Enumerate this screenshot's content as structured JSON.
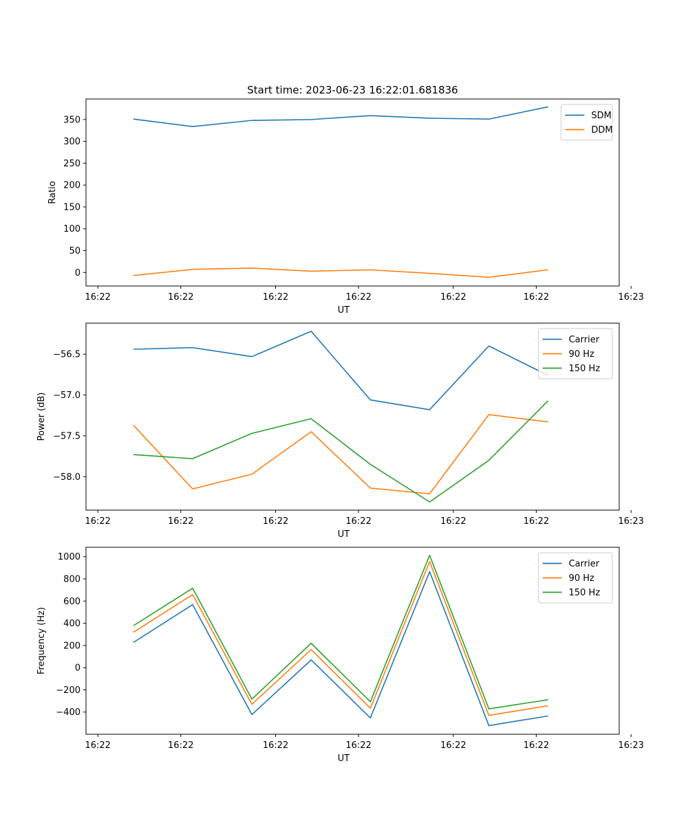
{
  "figure": {
    "title": "Start time: 2023-06-23 16:22:01.681836"
  },
  "chart_data": [
    {
      "type": "line",
      "title": "Start time: 2023-06-23 16:22:01.681836",
      "xlabel": "UT",
      "ylabel": "Ratio",
      "x": [
        "16:22:02.6",
        "16:22:03.1",
        "16:22:03.6",
        "16:22:04.1",
        "16:22:04.6",
        "16:22:05.1",
        "16:22:05.6",
        "16:22:06.1"
      ],
      "xlim": [
        "16:22:02.2",
        "16:22:06.7"
      ],
      "x_tick_labels": [
        "16:22",
        "16:22",
        "16:22",
        "16:22",
        "16:22",
        "16:22",
        "16:22"
      ],
      "ylim": [
        -31,
        397
      ],
      "y_ticks": [
        0,
        50,
        100,
        150,
        200,
        250,
        300,
        350
      ],
      "legend_position": "top-right",
      "series": [
        {
          "name": "SDM",
          "color": "#1f77b4",
          "values": [
            351,
            334,
            348,
            350,
            359,
            353,
            351,
            379
          ]
        },
        {
          "name": "DDM",
          "color": "#ff7f0e",
          "values": [
            -7,
            7,
            10,
            3,
            6,
            -2,
            -11,
            6
          ]
        }
      ]
    },
    {
      "type": "line",
      "xlabel": "UT",
      "ylabel": "Power (dB)",
      "x": [
        "16:22:02.6",
        "16:22:03.1",
        "16:22:03.6",
        "16:22:04.1",
        "16:22:04.6",
        "16:22:05.1",
        "16:22:05.6",
        "16:22:06.1"
      ],
      "xlim": [
        "16:22:02.2",
        "16:22:06.7"
      ],
      "x_tick_labels": [
        "16:22",
        "16:22",
        "16:22",
        "16:22",
        "16:22",
        "16:22",
        "16:22"
      ],
      "ylim": [
        -58.41,
        -56.12
      ],
      "y_ticks": [
        -58.0,
        -57.5,
        -57.0,
        -56.5
      ],
      "y_tick_labels": [
        "−58.0",
        "−57.5",
        "−57.0",
        "−56.5"
      ],
      "legend_position": "top-right",
      "series": [
        {
          "name": "Carrier",
          "color": "#1f77b4",
          "values": [
            -56.44,
            -56.42,
            -56.53,
            -56.22,
            -57.06,
            -57.18,
            -56.4,
            -56.76
          ]
        },
        {
          "name": "90 Hz",
          "color": "#ff7f0e",
          "values": [
            -57.37,
            -58.15,
            -57.97,
            -57.45,
            -58.14,
            -58.21,
            -57.24,
            -57.33
          ]
        },
        {
          "name": "150 Hz",
          "color": "#2ca02c",
          "values": [
            -57.73,
            -57.78,
            -57.47,
            -57.29,
            -57.85,
            -58.31,
            -57.8,
            -57.07
          ]
        }
      ]
    },
    {
      "type": "line",
      "xlabel": "UT",
      "ylabel": "Frequency (Hz)",
      "x": [
        "16:22:02.6",
        "16:22:03.1",
        "16:22:03.6",
        "16:22:04.1",
        "16:22:04.6",
        "16:22:05.1",
        "16:22:05.6",
        "16:22:06.1"
      ],
      "xlim": [
        "16:22:02.2",
        "16:22:06.7"
      ],
      "x_tick_labels": [
        "16:22",
        "16:22",
        "16:22",
        "16:22",
        "16:22",
        "16:22",
        "16:22"
      ],
      "ylim": [
        -600,
        1085
      ],
      "y_ticks": [
        -400,
        -200,
        0,
        200,
        400,
        600,
        800,
        1000
      ],
      "y_tick_labels": [
        "−400",
        "−200",
        "0",
        "200",
        "400",
        "600",
        "800",
        "1000"
      ],
      "legend_position": "top-right",
      "series": [
        {
          "name": "Carrier",
          "color": "#1f77b4",
          "values": [
            227,
            568,
            -423,
            70,
            -453,
            865,
            -522,
            -435
          ]
        },
        {
          "name": "90 Hz",
          "color": "#ff7f0e",
          "values": [
            319,
            659,
            -330,
            163,
            -365,
            957,
            -430,
            -343
          ]
        },
        {
          "name": "150 Hz",
          "color": "#2ca02c",
          "values": [
            378,
            716,
            -283,
            220,
            -307,
            1013,
            -371,
            -289
          ]
        }
      ]
    }
  ],
  "x_axis_ticks": {
    "values": [
      "16:22:02.3",
      "16:22:03.0",
      "16:22:03.8",
      "16:22:04.5",
      "16:22:05.3",
      "16:22:06.0",
      "16:22:06.8"
    ],
    "labels": [
      "16:22",
      "16:22",
      "16:22",
      "16:22",
      "16:22",
      "16:22",
      "16:23"
    ]
  }
}
